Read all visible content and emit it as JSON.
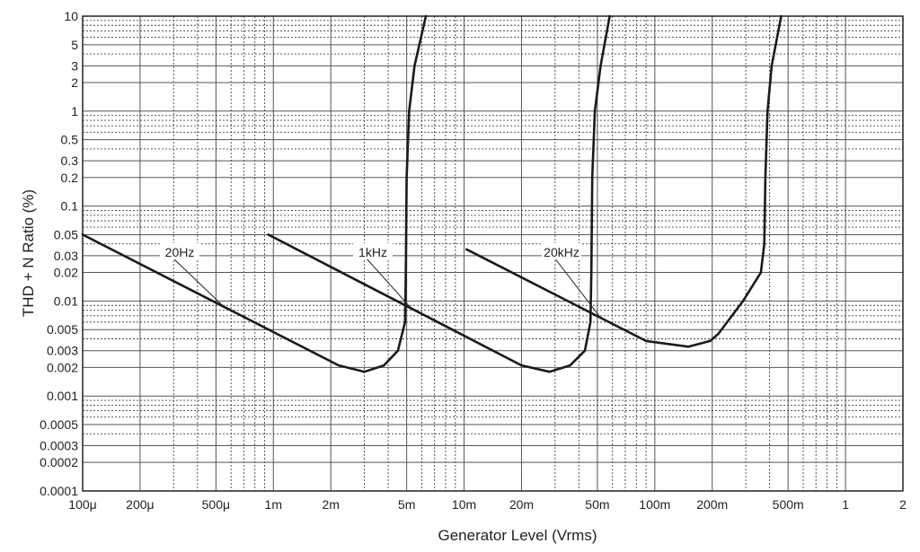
{
  "chart_data": {
    "type": "line",
    "xlabel": "Generator Level (Vrms)",
    "ylabel": "THD + N Ratio (%)",
    "xscale": "log",
    "yscale": "log",
    "xlim": [
      0.0001,
      2
    ],
    "ylim": [
      0.0001,
      10
    ],
    "grid": true,
    "x_ticks": [
      {
        "v": 0.0001,
        "label": "100μ"
      },
      {
        "v": 0.0002,
        "label": "200μ"
      },
      {
        "v": 0.0005,
        "label": "500μ"
      },
      {
        "v": 0.001,
        "label": "1m"
      },
      {
        "v": 0.002,
        "label": "2m"
      },
      {
        "v": 0.005,
        "label": "5m"
      },
      {
        "v": 0.01,
        "label": "10m"
      },
      {
        "v": 0.02,
        "label": "20m"
      },
      {
        "v": 0.05,
        "label": "50m"
      },
      {
        "v": 0.1,
        "label": "100m"
      },
      {
        "v": 0.2,
        "label": "200m"
      },
      {
        "v": 0.5,
        "label": "500m"
      },
      {
        "v": 1,
        "label": "1"
      },
      {
        "v": 2,
        "label": "2"
      }
    ],
    "y_ticks": [
      {
        "v": 10,
        "label": "10"
      },
      {
        "v": 5,
        "label": "5"
      },
      {
        "v": 3,
        "label": "3"
      },
      {
        "v": 2,
        "label": "2"
      },
      {
        "v": 1,
        "label": "1"
      },
      {
        "v": 0.5,
        "label": "0.5"
      },
      {
        "v": 0.3,
        "label": "0.3"
      },
      {
        "v": 0.2,
        "label": "0.2"
      },
      {
        "v": 0.1,
        "label": "0.1"
      },
      {
        "v": 0.05,
        "label": "0.05"
      },
      {
        "v": 0.03,
        "label": "0.03"
      },
      {
        "v": 0.02,
        "label": "0.02"
      },
      {
        "v": 0.01,
        "label": "0.01"
      },
      {
        "v": 0.005,
        "label": "0.005"
      },
      {
        "v": 0.003,
        "label": "0.003"
      },
      {
        "v": 0.002,
        "label": "0.002"
      },
      {
        "v": 0.001,
        "label": "0.001"
      },
      {
        "v": 0.0005,
        "label": "0.0005"
      },
      {
        "v": 0.0003,
        "label": "0.0003"
      },
      {
        "v": 0.0002,
        "label": "0.0002"
      },
      {
        "v": 0.0001,
        "label": "0.0001"
      }
    ],
    "series": [
      {
        "name": "20Hz",
        "points": [
          [
            0.0001,
            0.05
          ],
          [
            0.0022,
            0.0021
          ],
          [
            0.003,
            0.0018
          ],
          [
            0.0038,
            0.0021
          ],
          [
            0.0045,
            0.003
          ],
          [
            0.0049,
            0.006
          ],
          [
            0.00495,
            0.02
          ],
          [
            0.005,
            0.2
          ],
          [
            0.00515,
            1
          ],
          [
            0.0055,
            3
          ],
          [
            0.0063,
            10
          ]
        ]
      },
      {
        "name": "1kHz",
        "points": [
          [
            0.00094,
            0.05
          ],
          [
            0.02,
            0.0021
          ],
          [
            0.028,
            0.0018
          ],
          [
            0.036,
            0.0021
          ],
          [
            0.043,
            0.003
          ],
          [
            0.046,
            0.006
          ],
          [
            0.0465,
            0.02
          ],
          [
            0.047,
            0.2
          ],
          [
            0.0485,
            1
          ],
          [
            0.052,
            3
          ],
          [
            0.058,
            10
          ]
        ]
      },
      {
        "name": "20kHz",
        "points": [
          [
            0.0103,
            0.035
          ],
          [
            0.09,
            0.0038
          ],
          [
            0.15,
            0.0033
          ],
          [
            0.195,
            0.0038
          ],
          [
            0.215,
            0.0045
          ],
          [
            0.29,
            0.01
          ],
          [
            0.36,
            0.02
          ],
          [
            0.375,
            0.04
          ],
          [
            0.38,
            0.2
          ],
          [
            0.39,
            1
          ],
          [
            0.41,
            3
          ],
          [
            0.46,
            10
          ]
        ]
      }
    ]
  }
}
